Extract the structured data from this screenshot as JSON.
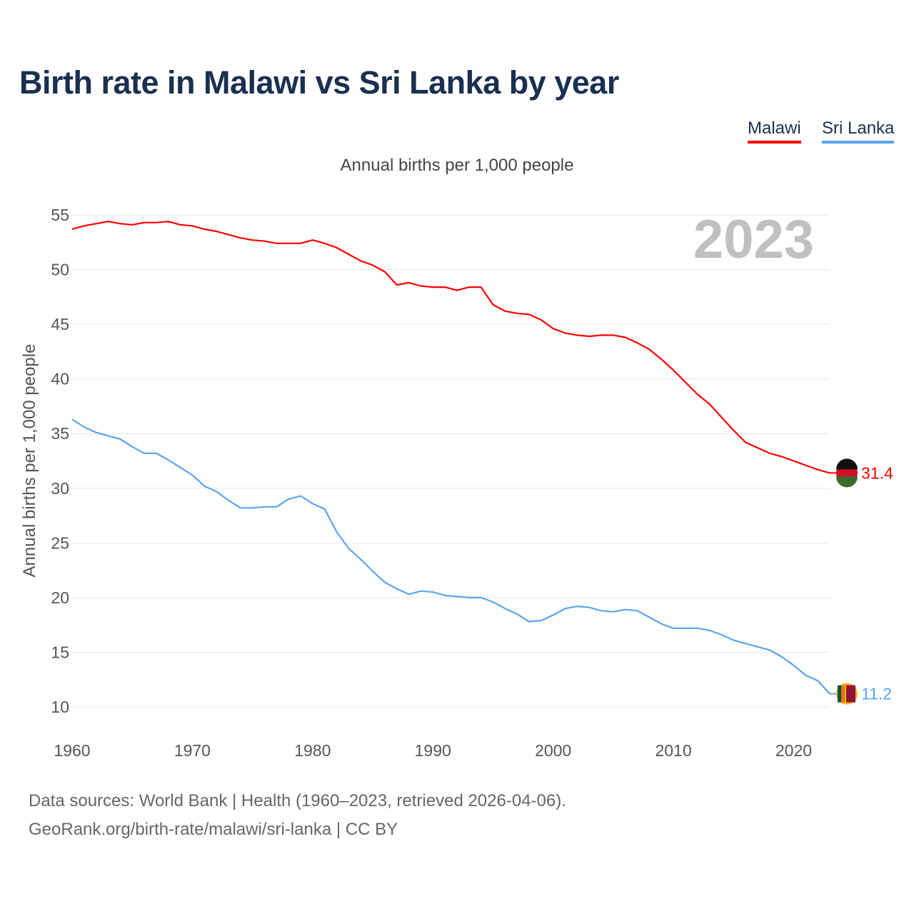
{
  "chart_data": {
    "type": "line",
    "title": "Birth rate in Malawi vs Sri Lanka by year",
    "subtitle": "Annual births per 1,000 people",
    "ylabel": "Annual births per 1,000 people",
    "xlabel": "",
    "xlim": [
      1960,
      2023
    ],
    "ylim": [
      10,
      55
    ],
    "yticks": [
      10,
      15,
      20,
      25,
      30,
      35,
      40,
      45,
      50,
      55
    ],
    "xticks": [
      1960,
      1970,
      1980,
      1990,
      2000,
      2010,
      2020
    ],
    "grid": true,
    "legend_position": "top-right",
    "year_label": "2023",
    "x_start": 1960,
    "series": [
      {
        "name": "Malawi",
        "color": "#ff0000",
        "end_label": "31.4",
        "values": [
          53.7,
          54.0,
          54.2,
          54.4,
          54.2,
          54.1,
          54.3,
          54.3,
          54.4,
          54.1,
          54.0,
          53.7,
          53.5,
          53.2,
          52.9,
          52.7,
          52.6,
          52.4,
          52.4,
          52.4,
          52.7,
          52.4,
          52.0,
          51.4,
          50.8,
          50.4,
          49.8,
          48.6,
          48.8,
          48.5,
          48.4,
          48.4,
          48.1,
          48.4,
          48.4,
          46.8,
          46.2,
          46.0,
          45.9,
          45.4,
          44.6,
          44.2,
          44.0,
          43.9,
          44.0,
          44.0,
          43.8,
          43.3,
          42.7,
          41.8,
          40.8,
          39.7,
          38.6,
          37.7,
          36.5,
          35.3,
          34.2,
          33.7,
          33.2,
          32.9,
          32.5,
          32.1,
          31.7,
          31.4
        ]
      },
      {
        "name": "Sri Lanka",
        "color": "#5aa5ee",
        "end_label": "11.2",
        "values": [
          36.3,
          35.6,
          35.1,
          34.8,
          34.5,
          33.8,
          33.2,
          33.2,
          32.6,
          31.9,
          31.2,
          30.2,
          29.7,
          28.9,
          28.2,
          28.2,
          28.3,
          28.3,
          29.0,
          29.3,
          28.6,
          28.1,
          26.0,
          24.5,
          23.5,
          22.4,
          21.4,
          20.8,
          20.3,
          20.6,
          20.5,
          20.2,
          20.1,
          20.0,
          20.0,
          19.6,
          19.0,
          18.5,
          17.8,
          17.9,
          18.4,
          19.0,
          19.2,
          19.1,
          18.8,
          18.7,
          18.9,
          18.8,
          18.2,
          17.6,
          17.2,
          17.2,
          17.2,
          17.0,
          16.6,
          16.1,
          15.8,
          15.5,
          15.2,
          14.6,
          13.8,
          12.9,
          12.4,
          11.2
        ]
      }
    ]
  },
  "footer": {
    "line1": "Data sources: World Bank | Health (1960–2023, retrieved 2026-04-06).",
    "line2": "GeoRank.org/birth-rate/malawi/sri-lanka | CC BY"
  }
}
